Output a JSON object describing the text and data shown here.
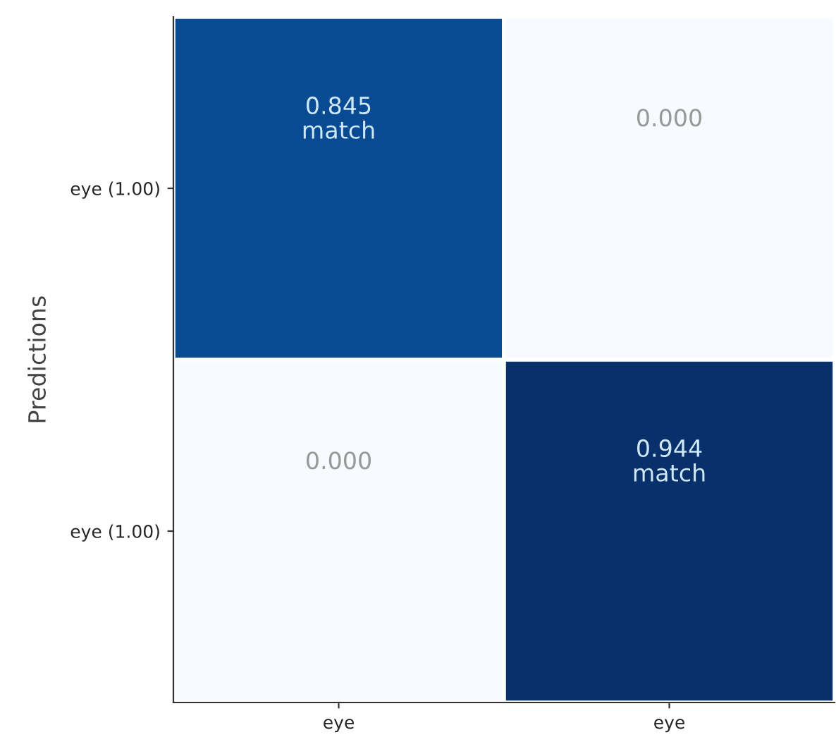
{
  "chart_data": {
    "type": "heatmap",
    "ylabel": "Predictions",
    "categories": [
      "eye",
      "eye"
    ],
    "y_categories": [
      "eye (1.00)",
      "eye (1.00)"
    ],
    "cells": [
      [
        0.845,
        0.0
      ],
      [
        0.0,
        0.944
      ]
    ],
    "cell_labels": [
      [
        "0.845\nmatch",
        "0.000"
      ],
      [
        "0.000",
        "0.944\nmatch"
      ]
    ]
  }
}
